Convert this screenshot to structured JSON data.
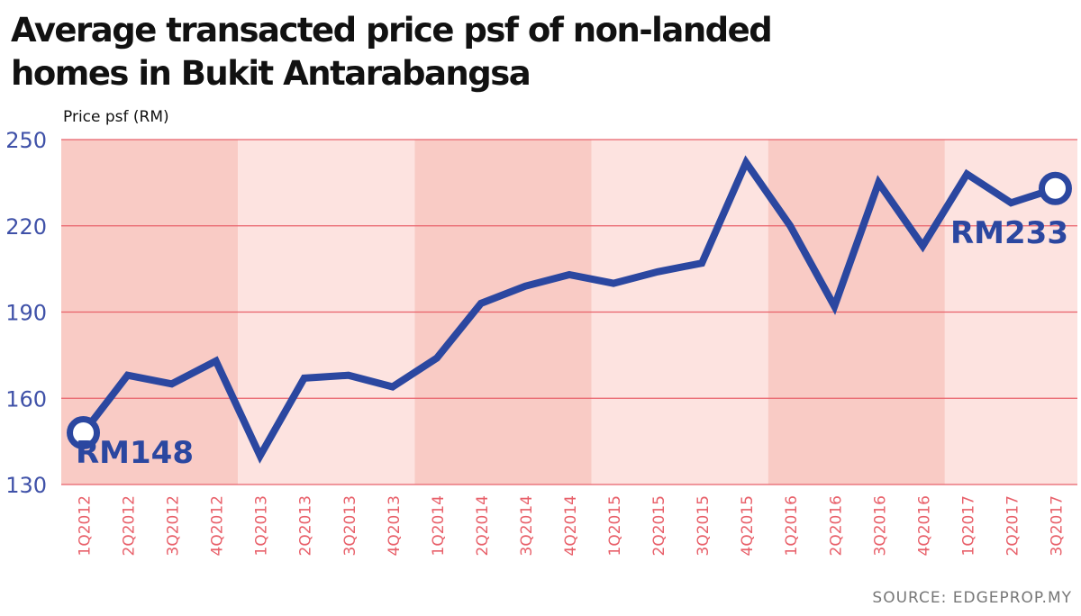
{
  "header": {
    "title_line1": "Average transacted price psf of non-landed",
    "title_line2": "homes in Bukit Antarabangsa"
  },
  "footer": {
    "source": "SOURCE: EDGEPROP.MY"
  },
  "colors": {
    "line": "#2b47a0",
    "band_dark": "#f9cbc5",
    "band_light": "#fde3e0",
    "grid": "#e8606a",
    "tick_y": "#3f51a8",
    "tick_x": "#e8606a"
  },
  "chart_data": {
    "type": "line",
    "ylabel": "Price psf (RM)",
    "ylim": [
      130,
      250
    ],
    "yticks": [
      130,
      160,
      190,
      220,
      250
    ],
    "grid": true,
    "categories": [
      "1Q2012",
      "2Q2012",
      "3Q2012",
      "4Q2012",
      "1Q2013",
      "2Q2013",
      "3Q2013",
      "4Q2013",
      "1Q2014",
      "2Q2014",
      "3Q2014",
      "4Q2014",
      "1Q2015",
      "2Q2015",
      "3Q2015",
      "4Q2015",
      "1Q2016",
      "2Q2016",
      "3Q2016",
      "4Q2016",
      "1Q2017",
      "2Q2017",
      "3Q2017"
    ],
    "series": [
      {
        "values": [
          148,
          168,
          165,
          173,
          140,
          167,
          168,
          164,
          174,
          193,
          199,
          203,
          200,
          204,
          207,
          242,
          220,
          192,
          235,
          213,
          238,
          228,
          233
        ]
      }
    ],
    "annotations": [
      {
        "index": 0,
        "text": "RM148"
      },
      {
        "index": 22,
        "text": "RM233"
      }
    ]
  }
}
